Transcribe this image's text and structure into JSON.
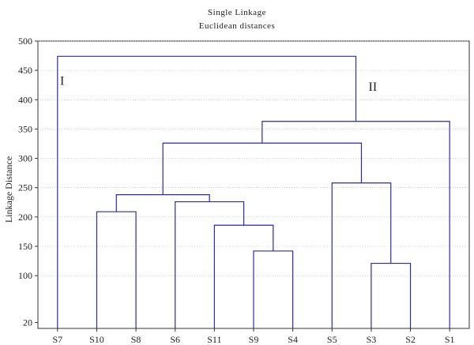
{
  "chart_data": {
    "type": "dendrogram",
    "title": "Single Linkage",
    "subtitle": "Euclidean distances",
    "xlabel": "",
    "ylabel": "Linkage Distance",
    "ylim": [
      10,
      500
    ],
    "yticks": [
      20,
      100,
      150,
      200,
      250,
      300,
      350,
      400,
      450,
      500
    ],
    "grid": true,
    "line_color": "#2b2ba8",
    "leaves": [
      "S7",
      "S10",
      "S8",
      "S6",
      "S11",
      "S9",
      "S4",
      "S5",
      "S3",
      "S2",
      "S1"
    ],
    "merges": [
      {
        "left": "S9",
        "right": "S4",
        "height": 142
      },
      {
        "left": "S3",
        "right": "S2",
        "height": 121
      },
      {
        "left": "S10",
        "right": "S8",
        "height": 209
      },
      {
        "left": "S11",
        "right": "S9-S4",
        "height": 186
      },
      {
        "left": "S6",
        "right": "S11-S9-S4",
        "height": 226
      },
      {
        "left": "S10-S8",
        "right": "S6-S11-S9-S4",
        "height": 238
      },
      {
        "left": "S5",
        "right": "S3-S2",
        "height": 258
      },
      {
        "left": "left-group",
        "right": "S5-S3-S2",
        "height": 326
      },
      {
        "left": "inner",
        "right": "S1",
        "height": 363
      },
      {
        "left": "S7",
        "right": "rest",
        "height": 474
      }
    ],
    "annotations": [
      "I",
      "II"
    ]
  }
}
